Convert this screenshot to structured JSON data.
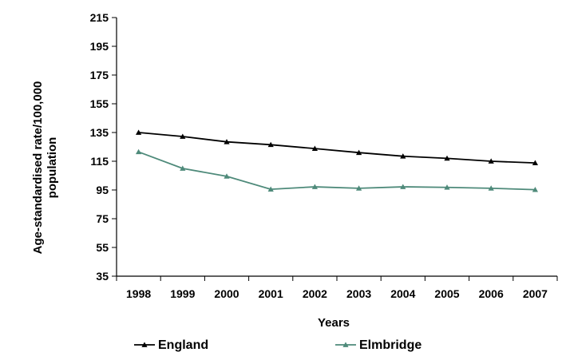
{
  "chart_data": {
    "type": "line",
    "categories": [
      "1998",
      "1999",
      "2000",
      "2001",
      "2002",
      "2003",
      "2004",
      "2005",
      "2006",
      "2007"
    ],
    "series": [
      {
        "name": "England",
        "values": [
          135,
          132.2,
          128.5,
          126.5,
          123.8,
          121,
          118.5,
          117,
          115,
          113.8
        ],
        "color": "#000000",
        "marker": "triangle"
      },
      {
        "name": "Elmbridge",
        "values": [
          121.5,
          110,
          104.5,
          95.5,
          97.2,
          96.2,
          97.2,
          96.8,
          96.2,
          95.2
        ],
        "color": "#4e8a7a",
        "marker": "triangle"
      }
    ],
    "yticks": [
      35,
      55,
      75,
      95,
      115,
      135,
      155,
      175,
      195,
      215
    ],
    "ylim": [
      35,
      215
    ],
    "xlabel": "Years",
    "ylabel_lines": [
      "Age-standardised rate/100,000",
      "population"
    ],
    "grid": false,
    "legend_position": "bottom"
  }
}
